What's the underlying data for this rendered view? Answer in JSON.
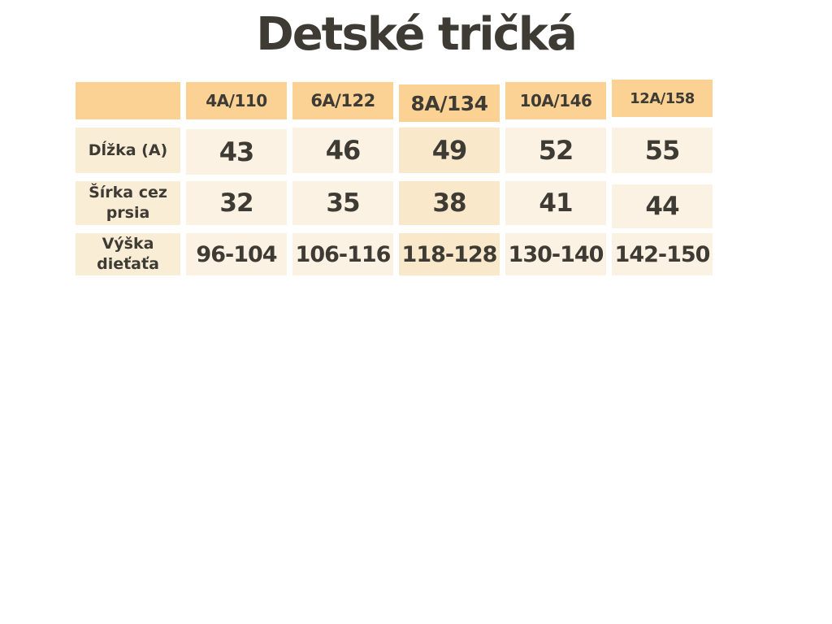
{
  "page": {
    "title": "Detské tričká",
    "background_color": "#ffffff"
  },
  "colors": {
    "header_bg": "#fbd294",
    "label_bg": "#faedd6",
    "cell_bg": "#fcf2e3",
    "highlight_bg": "#fae8cb",
    "text": "#3e3b35"
  },
  "size_chart": {
    "highlighted_column": "8A/134",
    "columns": [
      "4A/110",
      "6A/122",
      "8A/134",
      "10A/146",
      "12A/158"
    ],
    "rows": [
      {
        "label": "Dĺžka (A)",
        "values": [
          "43",
          "46",
          "49",
          "52",
          "55"
        ]
      },
      {
        "label": "Šírka cez prsia",
        "values": [
          "32",
          "35",
          "38",
          "41",
          "44"
        ]
      },
      {
        "label": "Výška dieťaťa",
        "values": [
          "96-104",
          "106-116",
          "118-128",
          "130-140",
          "142-150"
        ]
      }
    ]
  }
}
